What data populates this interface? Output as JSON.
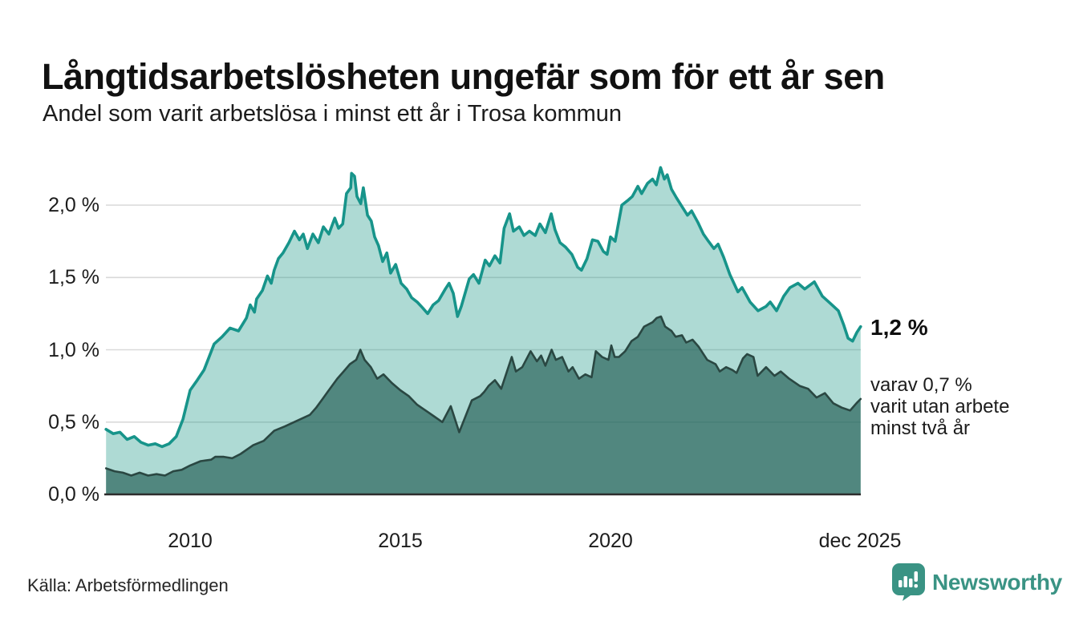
{
  "chart_data": {
    "type": "area",
    "title": "Långtidsarbetslösheten ungefär som för ett år sen",
    "subtitle": "Andel som varit arbetslösa i minst ett år i Trosa kommun",
    "x_axis": {
      "range": [
        2008.0,
        2025.95
      ],
      "ticks": [
        {
          "t": 2010,
          "label": "2010"
        },
        {
          "t": 2015,
          "label": "2015"
        },
        {
          "t": 2020,
          "label": "2020"
        },
        {
          "t": 2025.93,
          "label": "dec 2025"
        }
      ]
    },
    "y_axis": {
      "unit": "%",
      "range": [
        0,
        2.3
      ],
      "grid": true,
      "ticks": [
        {
          "v": 2.0,
          "label": "2,0 %"
        },
        {
          "v": 1.5,
          "label": "1,5 %"
        },
        {
          "v": 1.0,
          "label": "1,0 %"
        },
        {
          "v": 0.5,
          "label": "0,5 %"
        },
        {
          "v": 0.0,
          "label": "0,0 %"
        }
      ]
    },
    "series": [
      {
        "id": "minst-ett-ar",
        "name": "Arbetslösa minst ett år",
        "last_value": 1.2,
        "color": "#17948a",
        "fill": "rgba(42,157,143,0.38)",
        "stroke_width": 3.6,
        "points": [
          [
            2008.0,
            0.45
          ],
          [
            2008.17,
            0.42
          ],
          [
            2008.33,
            0.43
          ],
          [
            2008.5,
            0.38
          ],
          [
            2008.67,
            0.4
          ],
          [
            2008.83,
            0.36
          ],
          [
            2009.0,
            0.34
          ],
          [
            2009.17,
            0.35
          ],
          [
            2009.33,
            0.33
          ],
          [
            2009.5,
            0.35
          ],
          [
            2009.67,
            0.4
          ],
          [
            2009.83,
            0.52
          ],
          [
            2010.0,
            0.72
          ],
          [
            2010.17,
            0.79
          ],
          [
            2010.33,
            0.86
          ],
          [
            2010.57,
            1.04
          ],
          [
            2010.76,
            1.09
          ],
          [
            2010.95,
            1.15
          ],
          [
            2011.15,
            1.13
          ],
          [
            2011.34,
            1.22
          ],
          [
            2011.43,
            1.31
          ],
          [
            2011.53,
            1.26
          ],
          [
            2011.58,
            1.35
          ],
          [
            2011.72,
            1.41
          ],
          [
            2011.84,
            1.51
          ],
          [
            2011.93,
            1.46
          ],
          [
            2012.0,
            1.55
          ],
          [
            2012.1,
            1.63
          ],
          [
            2012.21,
            1.67
          ],
          [
            2012.35,
            1.74
          ],
          [
            2012.48,
            1.82
          ],
          [
            2012.6,
            1.76
          ],
          [
            2012.69,
            1.8
          ],
          [
            2012.79,
            1.7
          ],
          [
            2012.92,
            1.8
          ],
          [
            2013.05,
            1.74
          ],
          [
            2013.17,
            1.85
          ],
          [
            2013.3,
            1.8
          ],
          [
            2013.44,
            1.91
          ],
          [
            2013.53,
            1.84
          ],
          [
            2013.63,
            1.87
          ],
          [
            2013.72,
            2.08
          ],
          [
            2013.82,
            2.12
          ],
          [
            2013.84,
            2.22
          ],
          [
            2013.91,
            2.2
          ],
          [
            2013.97,
            2.06
          ],
          [
            2014.06,
            2.01
          ],
          [
            2014.12,
            2.12
          ],
          [
            2014.22,
            1.93
          ],
          [
            2014.31,
            1.89
          ],
          [
            2014.39,
            1.78
          ],
          [
            2014.48,
            1.72
          ],
          [
            2014.58,
            1.61
          ],
          [
            2014.68,
            1.67
          ],
          [
            2014.77,
            1.53
          ],
          [
            2014.89,
            1.59
          ],
          [
            2015.02,
            1.46
          ],
          [
            2015.15,
            1.42
          ],
          [
            2015.27,
            1.36
          ],
          [
            2015.4,
            1.33
          ],
          [
            2015.53,
            1.29
          ],
          [
            2015.65,
            1.25
          ],
          [
            2015.78,
            1.31
          ],
          [
            2015.91,
            1.34
          ],
          [
            2016.07,
            1.42
          ],
          [
            2016.16,
            1.46
          ],
          [
            2016.26,
            1.39
          ],
          [
            2016.36,
            1.23
          ],
          [
            2016.45,
            1.3
          ],
          [
            2016.64,
            1.49
          ],
          [
            2016.74,
            1.52
          ],
          [
            2016.87,
            1.46
          ],
          [
            2017.02,
            1.62
          ],
          [
            2017.12,
            1.58
          ],
          [
            2017.25,
            1.65
          ],
          [
            2017.37,
            1.6
          ],
          [
            2017.47,
            1.84
          ],
          [
            2017.6,
            1.94
          ],
          [
            2017.69,
            1.82
          ],
          [
            2017.83,
            1.85
          ],
          [
            2017.94,
            1.79
          ],
          [
            2018.07,
            1.82
          ],
          [
            2018.21,
            1.79
          ],
          [
            2018.32,
            1.87
          ],
          [
            2018.45,
            1.81
          ],
          [
            2018.59,
            1.94
          ],
          [
            2018.68,
            1.83
          ],
          [
            2018.8,
            1.74
          ],
          [
            2018.93,
            1.71
          ],
          [
            2019.08,
            1.66
          ],
          [
            2019.22,
            1.57
          ],
          [
            2019.31,
            1.55
          ],
          [
            2019.44,
            1.63
          ],
          [
            2019.57,
            1.76
          ],
          [
            2019.7,
            1.75
          ],
          [
            2019.83,
            1.68
          ],
          [
            2019.92,
            1.66
          ],
          [
            2020.0,
            1.78
          ],
          [
            2020.11,
            1.75
          ],
          [
            2020.27,
            2.0
          ],
          [
            2020.4,
            2.03
          ],
          [
            2020.52,
            2.06
          ],
          [
            2020.65,
            2.13
          ],
          [
            2020.74,
            2.08
          ],
          [
            2020.88,
            2.15
          ],
          [
            2021.0,
            2.18
          ],
          [
            2021.09,
            2.14
          ],
          [
            2021.19,
            2.26
          ],
          [
            2021.28,
            2.18
          ],
          [
            2021.35,
            2.21
          ],
          [
            2021.45,
            2.11
          ],
          [
            2021.57,
            2.05
          ],
          [
            2021.7,
            1.99
          ],
          [
            2021.83,
            1.93
          ],
          [
            2021.93,
            1.96
          ],
          [
            2022.08,
            1.88
          ],
          [
            2022.21,
            1.8
          ],
          [
            2022.33,
            1.75
          ],
          [
            2022.46,
            1.7
          ],
          [
            2022.56,
            1.73
          ],
          [
            2022.69,
            1.64
          ],
          [
            2022.84,
            1.52
          ],
          [
            2023.03,
            1.4
          ],
          [
            2023.13,
            1.43
          ],
          [
            2023.32,
            1.33
          ],
          [
            2023.51,
            1.27
          ],
          [
            2023.7,
            1.3
          ],
          [
            2023.8,
            1.33
          ],
          [
            2023.95,
            1.27
          ],
          [
            2024.12,
            1.37
          ],
          [
            2024.27,
            1.43
          ],
          [
            2024.46,
            1.46
          ],
          [
            2024.62,
            1.42
          ],
          [
            2024.85,
            1.47
          ],
          [
            2025.04,
            1.37
          ],
          [
            2025.23,
            1.32
          ],
          [
            2025.42,
            1.27
          ],
          [
            2025.55,
            1.17
          ],
          [
            2025.65,
            1.08
          ],
          [
            2025.76,
            1.06
          ],
          [
            2025.86,
            1.12
          ],
          [
            2025.95,
            1.16
          ]
        ]
      },
      {
        "id": "minst-tva-ar",
        "name": "Arbetslösa minst två år",
        "last_value": 0.7,
        "color": "#2a4742",
        "fill": "rgba(30,90,82,0.65)",
        "stroke_width": 2.6,
        "points": [
          [
            2008.0,
            0.18
          ],
          [
            2008.2,
            0.16
          ],
          [
            2008.4,
            0.15
          ],
          [
            2008.6,
            0.13
          ],
          [
            2008.8,
            0.15
          ],
          [
            2009.0,
            0.13
          ],
          [
            2009.2,
            0.14
          ],
          [
            2009.4,
            0.13
          ],
          [
            2009.6,
            0.16
          ],
          [
            2009.8,
            0.17
          ],
          [
            2010.0,
            0.2
          ],
          [
            2010.25,
            0.23
          ],
          [
            2010.5,
            0.24
          ],
          [
            2010.6,
            0.26
          ],
          [
            2010.8,
            0.26
          ],
          [
            2011.0,
            0.25
          ],
          [
            2011.2,
            0.28
          ],
          [
            2011.5,
            0.34
          ],
          [
            2011.75,
            0.37
          ],
          [
            2012.0,
            0.44
          ],
          [
            2012.25,
            0.47
          ],
          [
            2012.55,
            0.51
          ],
          [
            2012.85,
            0.55
          ],
          [
            2013.0,
            0.6
          ],
          [
            2013.15,
            0.66
          ],
          [
            2013.3,
            0.72
          ],
          [
            2013.5,
            0.8
          ],
          [
            2013.65,
            0.85
          ],
          [
            2013.8,
            0.9
          ],
          [
            2013.95,
            0.93
          ],
          [
            2014.05,
            1.0
          ],
          [
            2014.15,
            0.93
          ],
          [
            2014.3,
            0.88
          ],
          [
            2014.45,
            0.8
          ],
          [
            2014.6,
            0.83
          ],
          [
            2014.8,
            0.77
          ],
          [
            2015.0,
            0.72
          ],
          [
            2015.2,
            0.68
          ],
          [
            2015.4,
            0.62
          ],
          [
            2015.65,
            0.57
          ],
          [
            2015.8,
            0.54
          ],
          [
            2016.0,
            0.5
          ],
          [
            2016.2,
            0.61
          ],
          [
            2016.4,
            0.43
          ],
          [
            2016.7,
            0.65
          ],
          [
            2016.9,
            0.68
          ],
          [
            2017.0,
            0.71
          ],
          [
            2017.1,
            0.75
          ],
          [
            2017.25,
            0.79
          ],
          [
            2017.4,
            0.73
          ],
          [
            2017.65,
            0.95
          ],
          [
            2017.75,
            0.85
          ],
          [
            2017.9,
            0.88
          ],
          [
            2018.1,
            0.99
          ],
          [
            2018.25,
            0.92
          ],
          [
            2018.35,
            0.96
          ],
          [
            2018.45,
            0.89
          ],
          [
            2018.6,
            1.0
          ],
          [
            2018.7,
            0.93
          ],
          [
            2018.85,
            0.95
          ],
          [
            2019.0,
            0.85
          ],
          [
            2019.1,
            0.88
          ],
          [
            2019.25,
            0.8
          ],
          [
            2019.4,
            0.83
          ],
          [
            2019.55,
            0.81
          ],
          [
            2019.65,
            0.99
          ],
          [
            2019.8,
            0.95
          ],
          [
            2019.95,
            0.93
          ],
          [
            2020.02,
            1.03
          ],
          [
            2020.1,
            0.95
          ],
          [
            2020.2,
            0.95
          ],
          [
            2020.35,
            0.99
          ],
          [
            2020.5,
            1.06
          ],
          [
            2020.65,
            1.09
          ],
          [
            2020.8,
            1.16
          ],
          [
            2021.0,
            1.19
          ],
          [
            2021.1,
            1.22
          ],
          [
            2021.2,
            1.23
          ],
          [
            2021.3,
            1.16
          ],
          [
            2021.45,
            1.13
          ],
          [
            2021.55,
            1.09
          ],
          [
            2021.7,
            1.1
          ],
          [
            2021.8,
            1.05
          ],
          [
            2021.95,
            1.07
          ],
          [
            2022.1,
            1.02
          ],
          [
            2022.3,
            0.93
          ],
          [
            2022.5,
            0.9
          ],
          [
            2022.6,
            0.85
          ],
          [
            2022.75,
            0.88
          ],
          [
            2022.9,
            0.86
          ],
          [
            2023.0,
            0.84
          ],
          [
            2023.15,
            0.94
          ],
          [
            2023.25,
            0.97
          ],
          [
            2023.4,
            0.95
          ],
          [
            2023.5,
            0.82
          ],
          [
            2023.7,
            0.88
          ],
          [
            2023.9,
            0.82
          ],
          [
            2024.05,
            0.85
          ],
          [
            2024.25,
            0.8
          ],
          [
            2024.5,
            0.75
          ],
          [
            2024.7,
            0.73
          ],
          [
            2024.9,
            0.67
          ],
          [
            2025.1,
            0.7
          ],
          [
            2025.3,
            0.63
          ],
          [
            2025.5,
            0.6
          ],
          [
            2025.7,
            0.58
          ],
          [
            2025.85,
            0.63
          ],
          [
            2025.95,
            0.66
          ]
        ]
      }
    ],
    "annotations": {
      "value_label": "1,2 %",
      "sub_line1": "varav 0,7 %",
      "sub_line2": "varit utan arbete",
      "sub_line3": "minst två år"
    },
    "grid_color": "#d9d9d9",
    "baseline_color": "#2c2c2c"
  },
  "footer": {
    "source": "Källa: Arbetsförmedlingen",
    "brand": "Newsworthy",
    "brand_color": "#3a9384"
  }
}
